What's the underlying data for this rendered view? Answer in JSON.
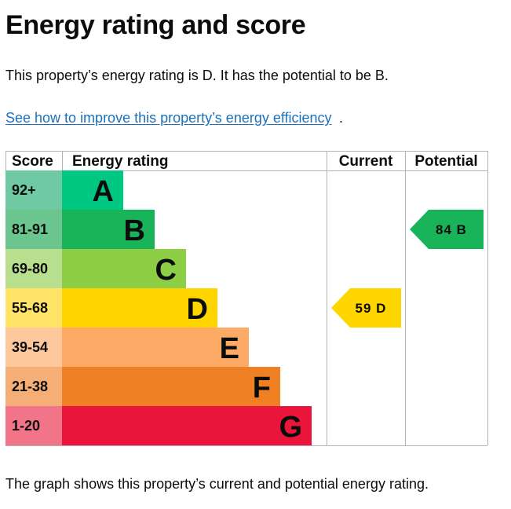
{
  "page": {
    "title": "Energy rating and score",
    "summary": "This property’s energy rating is D. It has the potential to be B.",
    "improve_link": "See how to improve this property’s energy efficiency",
    "improve_link_suffix": ".",
    "footer": "The graph shows this property’s current and potential energy rating."
  },
  "chart_data": {
    "type": "epc-rating",
    "headers": {
      "score": "Score",
      "rating": "Energy rating",
      "current": "Current",
      "potential": "Potential"
    },
    "bands": [
      {
        "letter": "A",
        "range": "92+",
        "color": "#00c781",
        "score_color": "#6fcaa3"
      },
      {
        "letter": "B",
        "range": "81-91",
        "color": "#19b459",
        "score_color": "#6bc58f"
      },
      {
        "letter": "C",
        "range": "69-80",
        "color": "#8dce46",
        "score_color": "#b7df8e"
      },
      {
        "letter": "D",
        "range": "55-68",
        "color": "#ffd500",
        "score_color": "#ffe467"
      },
      {
        "letter": "E",
        "range": "39-54",
        "color": "#fcaa65",
        "score_color": "#fdc89c"
      },
      {
        "letter": "F",
        "range": "21-38",
        "color": "#ef8023",
        "score_color": "#f4ae76"
      },
      {
        "letter": "G",
        "range": "1-20",
        "color": "#e9153b",
        "score_color": "#f27489"
      }
    ],
    "current": {
      "score": 59,
      "letter": "D",
      "label": "59 D"
    },
    "potential": {
      "score": 84,
      "letter": "B",
      "label": "84 B"
    }
  }
}
